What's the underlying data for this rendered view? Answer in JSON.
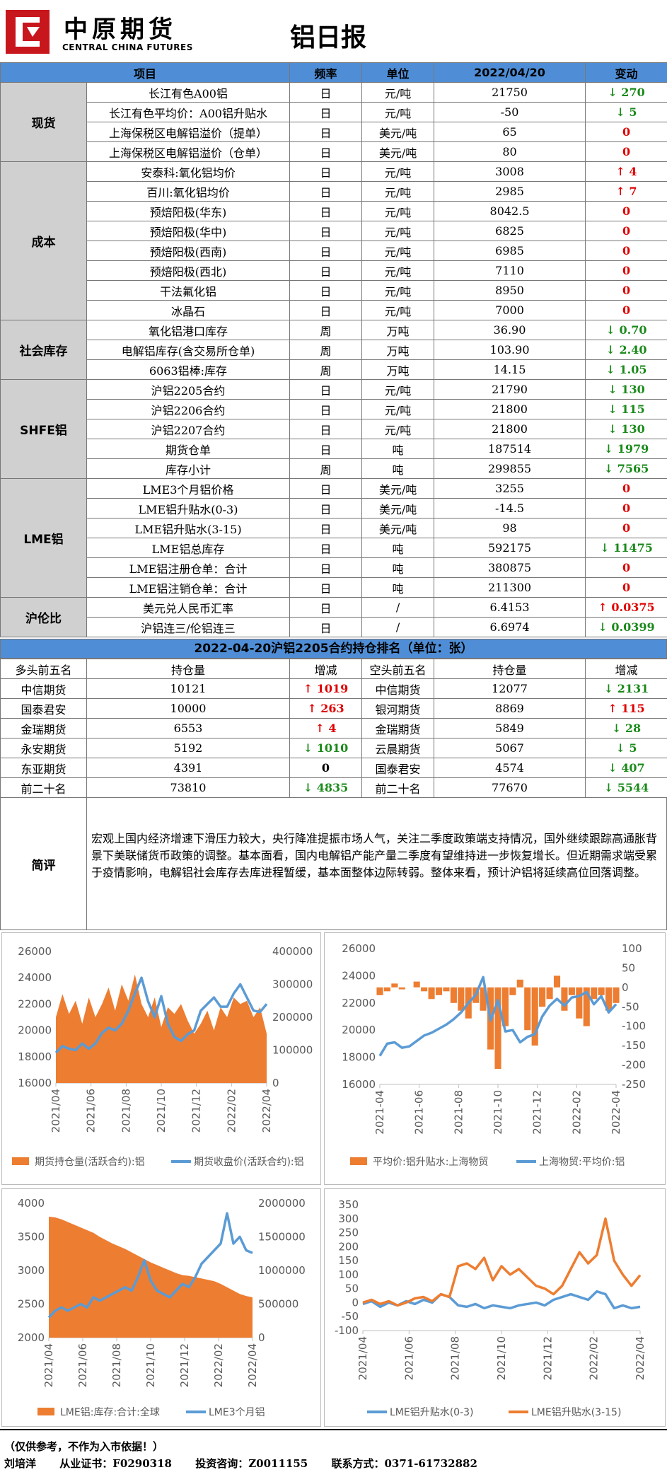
{
  "header": {
    "logo_cn": "中原期货",
    "logo_en": "CENTRAL CHINA FUTURES",
    "title": "铝日报"
  },
  "main_table": {
    "headers": [
      "项目",
      "频率",
      "单位",
      "2022/04/20",
      "变动"
    ],
    "groups": [
      {
        "category": "现货",
        "rows": [
          {
            "item": "长江有色A00铝",
            "freq": "日",
            "unit": "元/吨",
            "value": "21750",
            "change": "↓ 270",
            "dir": "down"
          },
          {
            "item": "长江有色平均价：A00铝升贴水",
            "freq": "日",
            "unit": "元/吨",
            "value": "-50",
            "change": "↓ 5",
            "dir": "down"
          },
          {
            "item": "上海保税区电解铝溢价（提单）",
            "freq": "日",
            "unit": "美元/吨",
            "value": "65",
            "change": "0",
            "dir": "zero"
          },
          {
            "item": "上海保税区电解铝溢价（仓单）",
            "freq": "日",
            "unit": "美元/吨",
            "value": "80",
            "change": "0",
            "dir": "zero"
          }
        ]
      },
      {
        "category": "成本",
        "rows": [
          {
            "item": "安泰科:氧化铝均价",
            "freq": "日",
            "unit": "元/吨",
            "value": "3008",
            "change": "↑ 4",
            "dir": "up"
          },
          {
            "item": "百川:氧化铝均价",
            "freq": "日",
            "unit": "元/吨",
            "value": "2985",
            "change": "↑ 7",
            "dir": "up"
          },
          {
            "item": "预焙阳极(华东)",
            "freq": "日",
            "unit": "元/吨",
            "value": "8042.5",
            "change": "0",
            "dir": "zero"
          },
          {
            "item": "预焙阳极(华中)",
            "freq": "日",
            "unit": "元/吨",
            "value": "6825",
            "change": "0",
            "dir": "zero"
          },
          {
            "item": "预焙阳极(西南)",
            "freq": "日",
            "unit": "元/吨",
            "value": "6985",
            "change": "0",
            "dir": "zero"
          },
          {
            "item": "预焙阳极(西北)",
            "freq": "日",
            "unit": "元/吨",
            "value": "7110",
            "change": "0",
            "dir": "zero"
          },
          {
            "item": "干法氟化铝",
            "freq": "日",
            "unit": "元/吨",
            "value": "8950",
            "change": "0",
            "dir": "zero"
          },
          {
            "item": "冰晶石",
            "freq": "日",
            "unit": "元/吨",
            "value": "7000",
            "change": "0",
            "dir": "zero"
          }
        ]
      },
      {
        "category": "社会库存",
        "rows": [
          {
            "item": "氧化铝港口库存",
            "freq": "周",
            "unit": "万吨",
            "value": "36.90",
            "change": "↓ 0.70",
            "dir": "down"
          },
          {
            "item": "电解铝库存(含交易所仓单)",
            "freq": "周",
            "unit": "万吨",
            "value": "103.90",
            "change": "↓ 2.40",
            "dir": "down"
          },
          {
            "item": "6063铝棒:库存",
            "freq": "周",
            "unit": "万吨",
            "value": "14.15",
            "change": "↓ 1.05",
            "dir": "down"
          }
        ]
      },
      {
        "category": "SHFE铝",
        "rows": [
          {
            "item": "沪铝2205合约",
            "freq": "日",
            "unit": "元/吨",
            "value": "21790",
            "change": "↓ 130",
            "dir": "down"
          },
          {
            "item": "沪铝2206合约",
            "freq": "日",
            "unit": "元/吨",
            "value": "21800",
            "change": "↓ 115",
            "dir": "down"
          },
          {
            "item": "沪铝2207合约",
            "freq": "日",
            "unit": "元/吨",
            "value": "21800",
            "change": "↓ 130",
            "dir": "down"
          },
          {
            "item": "期货仓单",
            "freq": "日",
            "unit": "吨",
            "value": "187514",
            "change": "↓ 1979",
            "dir": "down"
          },
          {
            "item": "库存小计",
            "freq": "周",
            "unit": "吨",
            "value": "299855",
            "change": "↓ 7565",
            "dir": "down"
          }
        ]
      },
      {
        "category": "LME铝",
        "rows": [
          {
            "item": "LME3个月铝价格",
            "freq": "日",
            "unit": "美元/吨",
            "value": "3255",
            "change": "0",
            "dir": "zero"
          },
          {
            "item": "LME铝升贴水(0-3)",
            "freq": "日",
            "unit": "美元/吨",
            "value": "-14.5",
            "change": "0",
            "dir": "zero"
          },
          {
            "item": "LME铝升贴水(3-15)",
            "freq": "日",
            "unit": "美元/吨",
            "value": "98",
            "change": "0",
            "dir": "zero"
          },
          {
            "item": "LME铝总库存",
            "freq": "日",
            "unit": "吨",
            "value": "592175",
            "change": "↓ 11475",
            "dir": "down"
          },
          {
            "item": "LME铝注册仓单：合计",
            "freq": "日",
            "unit": "吨",
            "value": "380875",
            "change": "0",
            "dir": "zero"
          },
          {
            "item": "LME铝注销仓单：合计",
            "freq": "日",
            "unit": "吨",
            "value": "211300",
            "change": "0",
            "dir": "zero"
          }
        ]
      },
      {
        "category": "沪伦比",
        "rows": [
          {
            "item": "美元兑人民币汇率",
            "freq": "日",
            "unit": "/",
            "value": "6.4153",
            "change": "↑ 0.0375",
            "dir": "up"
          },
          {
            "item": "沪铝连三/伦铝连三",
            "freq": "日",
            "unit": "/",
            "value": "6.6974",
            "change": "↓ 0.0399",
            "dir": "down"
          }
        ]
      }
    ]
  },
  "ranking": {
    "title": "2022-04-20沪铝2205合约持仓排名（单位：张）",
    "headers": [
      "多头前五名",
      "持仓量",
      "增减",
      "空头前五名",
      "持仓量",
      "增减"
    ],
    "rows": [
      {
        "long_name": "中信期货",
        "long_pos": "10121",
        "long_chg": "↑ 1019",
        "long_dir": "up",
        "short_name": "中信期货",
        "short_pos": "12077",
        "short_chg": "↓ 2131",
        "short_dir": "down"
      },
      {
        "long_name": "国泰君安",
        "long_pos": "10000",
        "long_chg": "↑ 263",
        "long_dir": "up",
        "short_name": "银河期货",
        "short_pos": "8869",
        "short_chg": "↑ 115",
        "short_dir": "up"
      },
      {
        "long_name": "金瑞期货",
        "long_pos": "6553",
        "long_chg": "↑ 4",
        "long_dir": "up",
        "short_name": "金瑞期货",
        "short_pos": "5849",
        "short_chg": "↓ 28",
        "short_dir": "down"
      },
      {
        "long_name": "永安期货",
        "long_pos": "5192",
        "long_chg": "↓ 1010",
        "long_dir": "down",
        "short_name": "云晨期货",
        "short_pos": "5067",
        "short_chg": "↓ 5",
        "short_dir": "down"
      },
      {
        "long_name": "东亚期货",
        "long_pos": "4391",
        "long_chg": "0",
        "long_dir": "zerob",
        "short_name": "国泰君安",
        "short_pos": "4574",
        "short_chg": "↓ 407",
        "short_dir": "down"
      },
      {
        "long_name": "前二十名",
        "long_pos": "73810",
        "long_chg": "↓ 4835",
        "long_dir": "down",
        "short_name": "前二十名",
        "short_pos": "77670",
        "short_chg": "↓ 5544",
        "short_dir": "down"
      }
    ]
  },
  "comment": {
    "label": "简评",
    "text": "宏观上国内经济增速下滑压力较大，央行降准提振市场人气，关注二季度政策端支持情况，国外继续跟踪高通胀背景下美联储货币政策的调整。基本面看，国内电解铝产能产量二季度有望维持进一步恢复增长。但近期需求端受累于疫情影响，电解铝社会库存去库进程暂缓，基本面整体边际转弱。整体来看，预计沪铝将延续高位回落调整。"
  },
  "chart_data": [
    {
      "type": "area+line",
      "x_ticks": [
        "2021/04",
        "2021/06",
        "2021/08",
        "2021/10",
        "2021/12",
        "2022/02",
        "2022/04"
      ],
      "left_axis": {
        "ticks": [
          "16000",
          "18000",
          "20000",
          "22000",
          "24000",
          "26000"
        ],
        "range": [
          16000,
          26000
        ]
      },
      "right_axis": {
        "ticks": [
          "0",
          "100000",
          "200000",
          "300000",
          "400000"
        ],
        "range": [
          0,
          400000
        ]
      },
      "series": [
        {
          "name": "期货持仓量(活跃合约):铝",
          "kind": "area",
          "axis": "right",
          "color": "#ed7d31",
          "values": [
            200000,
            270000,
            210000,
            250000,
            180000,
            260000,
            200000,
            240000,
            290000,
            220000,
            300000,
            250000,
            330000,
            240000,
            200000,
            260000,
            170000,
            230000,
            210000,
            240000,
            190000,
            150000,
            180000,
            220000,
            160000,
            230000,
            200000,
            260000,
            240000,
            250000,
            200000,
            230000,
            150000
          ]
        },
        {
          "name": "期货收盘价(活跃合约):铝",
          "kind": "line",
          "axis": "left",
          "color": "#5b9bd5",
          "values": [
            18300,
            18800,
            18600,
            18500,
            19000,
            18600,
            19000,
            19800,
            20200,
            20000,
            20500,
            21500,
            22800,
            24000,
            22200,
            21000,
            22600,
            20500,
            19500,
            19200,
            19700,
            20000,
            21500,
            22000,
            22500,
            21800,
            21800,
            22800,
            23500,
            22500,
            21500,
            21400,
            22000
          ]
        }
      ],
      "legend": [
        "期货持仓量(活跃合约):铝",
        "期货收盘价(活跃合约):铝"
      ]
    },
    {
      "type": "bar+line",
      "x_ticks": [
        "2021-04",
        "2021-06",
        "2021-08",
        "2021-10",
        "2021-12",
        "2022-02",
        "2022-04"
      ],
      "left_axis": {
        "ticks": [
          "16000",
          "18000",
          "20000",
          "22000",
          "24000",
          "26000"
        ],
        "range": [
          16000,
          26000
        ]
      },
      "right_axis": {
        "ticks": [
          "-250",
          "-200",
          "-150",
          "-100",
          "-50",
          "0",
          "50",
          "100"
        ],
        "range": [
          -250,
          100
        ]
      },
      "series": [
        {
          "name": "平均价:铝升贴水:上海物贸",
          "kind": "bar",
          "axis": "right",
          "color": "#ed7d31",
          "values": [
            -20,
            -10,
            10,
            -5,
            0,
            15,
            -10,
            -30,
            -20,
            -10,
            -40,
            -60,
            -80,
            -40,
            -60,
            -160,
            -210,
            -100,
            -20,
            20,
            -110,
            -150,
            -50,
            -30,
            30,
            -60,
            -20,
            -80,
            -100,
            -30,
            -20,
            -60,
            -40
          ]
        },
        {
          "name": "上海物贸:平均价:铝",
          "kind": "line",
          "axis": "left",
          "color": "#5b9bd5",
          "values": [
            18100,
            19000,
            19100,
            18700,
            18800,
            19200,
            19600,
            19800,
            20100,
            20400,
            20800,
            21300,
            22000,
            22600,
            23900,
            20700,
            22200,
            19900,
            20000,
            19100,
            19500,
            19700,
            21000,
            21800,
            22300,
            21800,
            22400,
            22500,
            22800,
            21900,
            22500,
            21300,
            21900
          ]
        }
      ],
      "legend": [
        "平均价:铝升贴水:上海物贸",
        "上海物贸:平均价:铝"
      ]
    },
    {
      "type": "area+line",
      "x_ticks": [
        "2021/04",
        "2021/06",
        "2021/08",
        "2021/10",
        "2021/12",
        "2022/02",
        "2022/04"
      ],
      "left_axis": {
        "ticks": [
          "2000",
          "2500",
          "3000",
          "3500",
          "4000"
        ],
        "range": [
          2000,
          4000
        ]
      },
      "right_axis": {
        "ticks": [
          "0",
          "500000",
          "1000000",
          "1500000",
          "2000000"
        ],
        "range": [
          0,
          2000000
        ]
      },
      "series": [
        {
          "name": "LME铝:库存:合计:全球",
          "kind": "area",
          "axis": "right",
          "color": "#ed7d31",
          "values": [
            1800000,
            1790000,
            1760000,
            1720000,
            1680000,
            1640000,
            1600000,
            1560000,
            1500000,
            1450000,
            1400000,
            1360000,
            1320000,
            1270000,
            1220000,
            1170000,
            1120000,
            1080000,
            1040000,
            1000000,
            960000,
            930000,
            920000,
            900000,
            880000,
            860000,
            840000,
            800000,
            750000,
            700000,
            650000,
            620000,
            600000
          ]
        },
        {
          "name": "LME3个月铝",
          "kind": "line",
          "axis": "left",
          "color": "#5b9bd5",
          "values": [
            2300,
            2400,
            2450,
            2400,
            2450,
            2500,
            2450,
            2600,
            2550,
            2600,
            2650,
            2700,
            2750,
            2700,
            2900,
            3150,
            2850,
            2700,
            2650,
            2600,
            2700,
            2800,
            2750,
            2900,
            3100,
            3200,
            3300,
            3400,
            3850,
            3400,
            3500,
            3300,
            3260
          ]
        }
      ],
      "legend": [
        "LME铝:库存:合计:全球",
        "LME3个月铝"
      ]
    },
    {
      "type": "line",
      "x_ticks": [
        "2021/04",
        "2021/06",
        "2021/08",
        "2021/10",
        "2021/12",
        "2022/02",
        "2022/04"
      ],
      "left_axis": {
        "ticks": [
          "-100",
          "-50",
          "0",
          "50",
          "100",
          "150",
          "200",
          "250",
          "300",
          "350"
        ],
        "range": [
          -100,
          350
        ]
      },
      "series": [
        {
          "name": "LME铝升贴水(0-3)",
          "kind": "line",
          "axis": "left",
          "color": "#5b9bd5",
          "values": [
            -5,
            5,
            -15,
            0,
            -10,
            5,
            -5,
            10,
            0,
            30,
            20,
            -10,
            -15,
            -5,
            -20,
            -10,
            -15,
            -20,
            -10,
            -5,
            0,
            -10,
            10,
            20,
            30,
            20,
            10,
            40,
            30,
            -20,
            -10,
            -20,
            -15
          ]
        },
        {
          "name": "LME铝升贴水(3-15)",
          "kind": "line",
          "axis": "left",
          "color": "#ed7d31",
          "values": [
            0,
            10,
            -5,
            5,
            -10,
            0,
            15,
            20,
            5,
            30,
            20,
            130,
            140,
            120,
            160,
            80,
            130,
            100,
            120,
            90,
            60,
            50,
            30,
            60,
            120,
            180,
            140,
            170,
            300,
            150,
            100,
            60,
            98
          ]
        }
      ],
      "legend": [
        "LME铝升贴水(0-3)",
        "LME铝升贴水(3-15)"
      ]
    }
  ],
  "footer": {
    "disclaimer": "（仅供参考，不作为入市依据！）",
    "author": "刘培洋",
    "license": "从业证书：F0290318",
    "advisory": "投资咨询：Z0011155",
    "contact": "联系方式：0371-61732882"
  }
}
